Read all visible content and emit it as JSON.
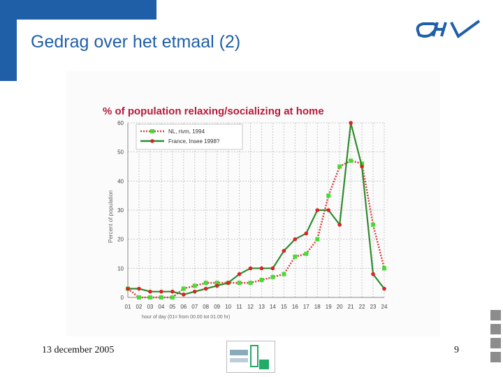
{
  "slide": {
    "title": "Gedrag over het etmaal (2)",
    "date": "13 december 2005",
    "page_number": "9"
  },
  "chart_data": {
    "type": "line",
    "title": "% of population relaxing/socializing at home",
    "xlabel": "hour of day (01= from 00.00 tot 01.00 hr)",
    "ylabel": "Percent of population",
    "ylim": [
      0,
      60
    ],
    "yticks": [
      0,
      10,
      20,
      30,
      40,
      50,
      60
    ],
    "grid": true,
    "legend_position": "top-left",
    "categories": [
      "01",
      "02",
      "03",
      "04",
      "05",
      "06",
      "07",
      "08",
      "09",
      "10",
      "11",
      "12",
      "13",
      "14",
      "15",
      "16",
      "17",
      "18",
      "19",
      "20",
      "21",
      "22",
      "23",
      "24"
    ],
    "series": [
      {
        "name": "NL, rivm, 1994",
        "color": "#d94040",
        "marker_color": "#44dd33",
        "line_style": "dotted",
        "values": [
          3,
          0,
          0,
          0,
          0,
          3,
          4,
          5,
          5,
          5,
          5,
          5,
          6,
          7,
          8,
          14,
          15,
          20,
          35,
          45,
          47,
          46,
          25,
          10
        ]
      },
      {
        "name": "France, Insee 1998?",
        "color": "#2e8b2e",
        "marker_color": "#dd2222",
        "line_style": "solid",
        "values": [
          3,
          3,
          2,
          2,
          2,
          1,
          2,
          3,
          4,
          5,
          8,
          10,
          10,
          10,
          16,
          20,
          22,
          30,
          30,
          25,
          60,
          45,
          8,
          3
        ]
      }
    ]
  }
}
